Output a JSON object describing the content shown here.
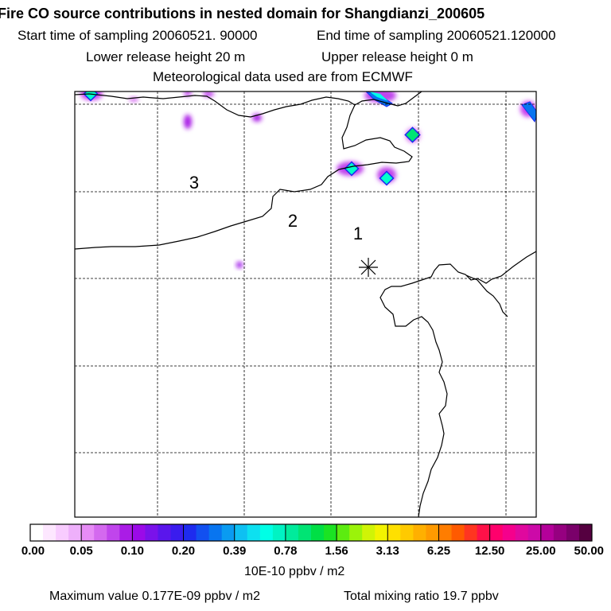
{
  "header": {
    "title": "Fire CO source contributions in nested domain for Shangdianzi_200605",
    "start_label": "Start time of sampling 20060521. 90000",
    "end_label": "End time of sampling 20060521.120000",
    "lower_release": "Lower release height   20 m",
    "upper_release": "Upper release height    0 m",
    "met_data": "Meteorological data used are from ECMWF"
  },
  "map": {
    "distance_labels": [
      "1",
      "2",
      "3"
    ],
    "receptor_marker": "receptor-star"
  },
  "colorbar": {
    "tick_labels": [
      "0.00",
      "0.05",
      "0.10",
      "0.20",
      "0.39",
      "0.78",
      "1.56",
      "3.13",
      "6.25",
      "12.50",
      "25.00",
      "50.00"
    ],
    "colors": [
      "#ffffff",
      "#fde7ff",
      "#f8ccff",
      "#eeb0fb",
      "#e78cf6",
      "#d469ef",
      "#c045ec",
      "#aa1ce6",
      "#9b0ae8",
      "#7a12ea",
      "#5a16ec",
      "#3a1cee",
      "#1e2bef",
      "#1250f0",
      "#0875f0",
      "#0a9bf1",
      "#0ec0f2",
      "#0de0f0",
      "#00ffe6",
      "#00f3c3",
      "#00eb9c",
      "#00e474",
      "#00df45",
      "#1be323",
      "#5cec10",
      "#9bf30a",
      "#d0f406",
      "#f3f300",
      "#ffe000",
      "#ffca00",
      "#ffb000",
      "#ff9a00",
      "#ff7d00",
      "#ff5a00",
      "#ff3520",
      "#ff1148",
      "#ff006c",
      "#f5008c",
      "#e0089e",
      "#cc0aa8",
      "#b4009a",
      "#960080",
      "#7a006a",
      "#550040"
    ],
    "units": "10E-10 ppbv / m2"
  },
  "footer": {
    "max_value": "Maximum value  0.177E-09 ppbv / m2",
    "total_mixing": "Total mixing ratio       19.7 ppbv"
  }
}
